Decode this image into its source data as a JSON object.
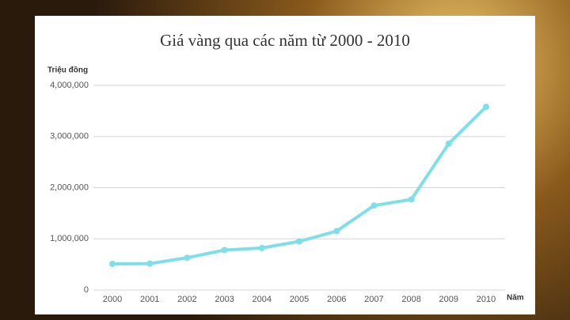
{
  "chart_data": {
    "type": "line",
    "title": "Giá vàng qua các năm từ 2000 - 2010",
    "y_label": "Triệu đồng",
    "x_label": "Năm",
    "categories": [
      "2000",
      "2001",
      "2002",
      "2003",
      "2004",
      "2005",
      "2006",
      "2007",
      "2008",
      "2009",
      "2010"
    ],
    "values": [
      510000,
      515000,
      630000,
      780000,
      820000,
      950000,
      1150000,
      1650000,
      1770000,
      2860000,
      3580000
    ],
    "color": "#7fdfe8",
    "ylim": [
      0,
      4000000
    ],
    "yticks": [
      0,
      {
        "value": 1000000,
        "label": "1,000,000"
      },
      {
        "value": 2000000,
        "label": "2,000,000"
      },
      {
        "value": 3000000,
        "label": "3,000,000"
      },
      {
        "value": 4000000,
        "label": "4,000,000"
      }
    ],
    "grid": true
  }
}
